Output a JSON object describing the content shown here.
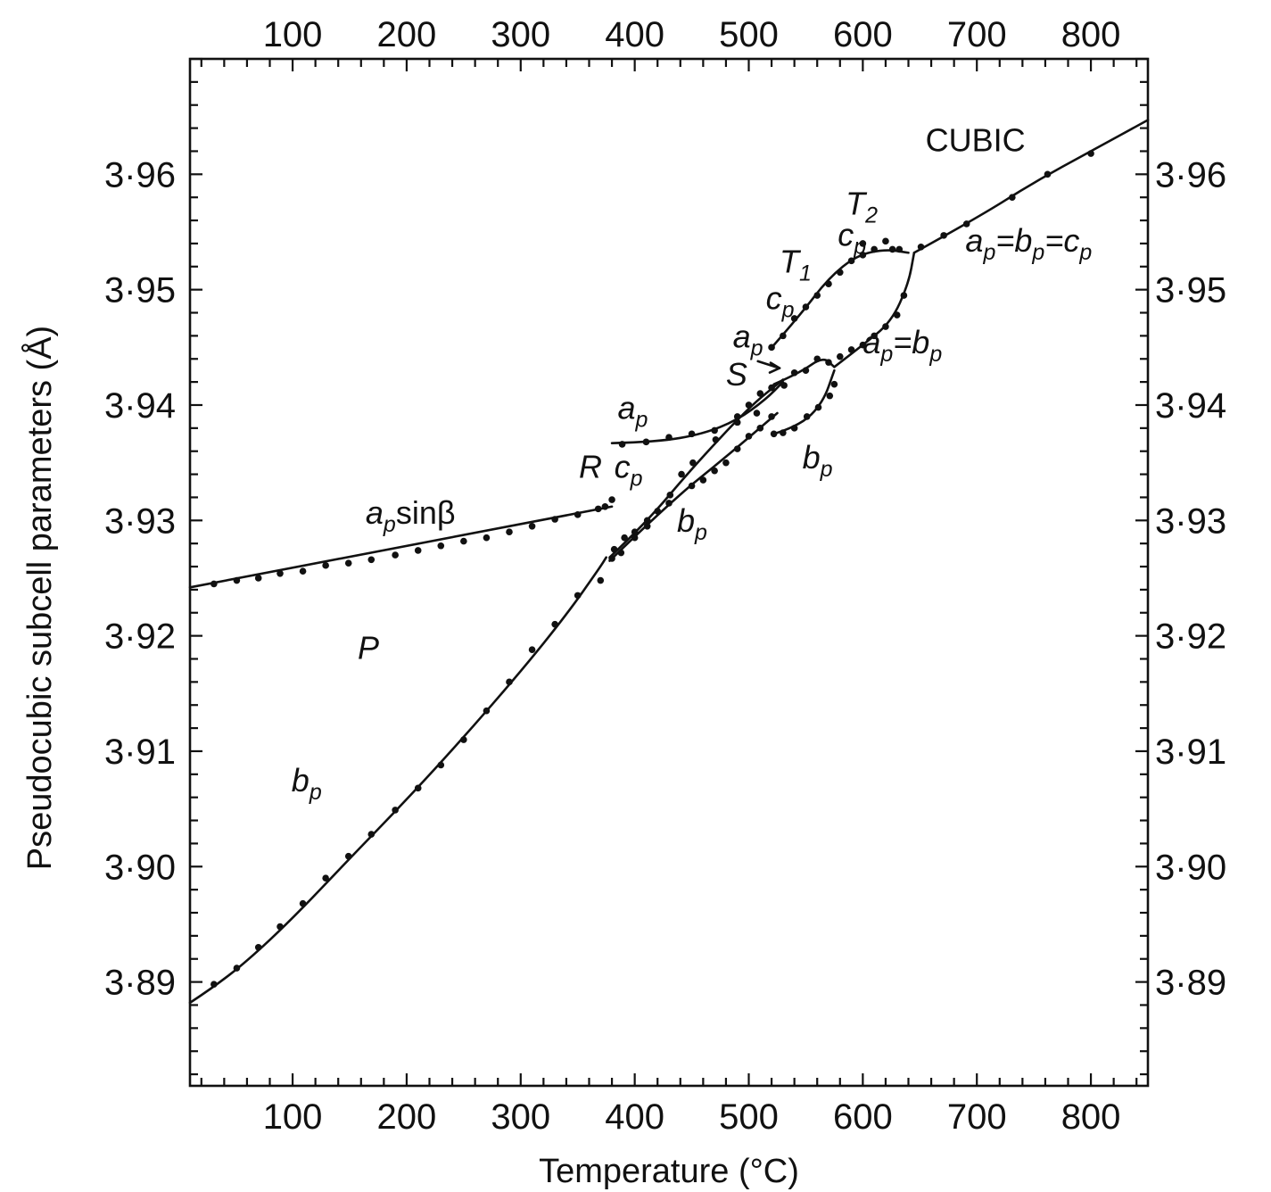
{
  "chart_data": {
    "type": "scatter",
    "title": "",
    "xlabel": "Temperature (°C)",
    "ylabel": "Pseudocubic subcell parameters (Å)",
    "xlim": [
      10,
      850
    ],
    "ylim": [
      3.881,
      3.97
    ],
    "x_ticks": [
      100,
      200,
      300,
      400,
      500,
      600,
      700,
      800
    ],
    "x_tick_labels": [
      "100",
      "200",
      "300",
      "400",
      "500",
      "600",
      "700",
      "800"
    ],
    "y_ticks": [
      3.89,
      3.9,
      3.91,
      3.92,
      3.93,
      3.94,
      3.95,
      3.96
    ],
    "y_tick_labels": [
      "3·89",
      "3·90",
      "3·91",
      "3·92",
      "3·93",
      "3·94",
      "3·95",
      "3·96"
    ],
    "grid": false,
    "axes": "mirrored: top and right axes repeat bottom and left",
    "annotations": [
      {
        "text": "CUBIC",
        "x": 655,
        "y": 3.962,
        "style": "upright"
      },
      {
        "text": "a",
        "sub": "p",
        "suffix": "=b",
        "text2": "p",
        "text3": "=c",
        "text4": "p",
        "x": 690,
        "y": 3.9533,
        "style": "italic",
        "full": "ap=bp=cp"
      },
      {
        "text": "T",
        "sub": "2",
        "x": 585,
        "y": 3.9565,
        "style": "italic",
        "full": "T2"
      },
      {
        "text": "c",
        "sub": "p",
        "x": 578,
        "y": 3.9538,
        "style": "italic",
        "full": "cp"
      },
      {
        "text": "T",
        "sub": "1",
        "x": 527,
        "y": 3.9515,
        "style": "italic",
        "full": "T1"
      },
      {
        "text": "c",
        "sub": "p",
        "x": 515,
        "y": 3.9483,
        "style": "italic",
        "full": "cp"
      },
      {
        "text": "a",
        "sub": "p",
        "x": 486,
        "y": 3.945,
        "style": "italic",
        "full": "ap"
      },
      {
        "text": "S",
        "x": 480,
        "y": 3.9417,
        "style": "italic",
        "full": "S"
      },
      {
        "text": "a",
        "sub": "p",
        "suffix": "=b",
        "text2": "p",
        "x": 600,
        "y": 3.9445,
        "style": "italic",
        "full": "ap=bp"
      },
      {
        "text": "a",
        "sub": "p",
        "x": 385,
        "y": 3.9388,
        "style": "italic",
        "full": "ap"
      },
      {
        "text": "b",
        "sub": "p",
        "x": 547,
        "y": 3.9345,
        "style": "italic",
        "full": "bp"
      },
      {
        "text": "R",
        "x": 351,
        "y": 3.9337,
        "style": "italic",
        "full": "R"
      },
      {
        "text": "c",
        "sub": "p",
        "x": 382,
        "y": 3.9337,
        "style": "italic",
        "full": "cp"
      },
      {
        "text": "b",
        "sub": "p",
        "x": 437,
        "y": 3.929,
        "style": "italic",
        "full": "bp"
      },
      {
        "text": "a",
        "sub": "p",
        "suffix": "sinβ",
        "x": 164,
        "y": 3.9297,
        "style": "italic",
        "full": "apsinβ"
      },
      {
        "text": "P",
        "x": 157,
        "y": 3.918,
        "style": "italic",
        "full": "P"
      },
      {
        "text": "b",
        "sub": "p",
        "x": 99,
        "y": 3.9065,
        "style": "italic",
        "full": "bp"
      }
    ],
    "series": [
      {
        "name": "P bp",
        "x": [
          31,
          51,
          70,
          89,
          109,
          129,
          149,
          169,
          190,
          210,
          230,
          250,
          270,
          290,
          310,
          330,
          350,
          370
        ],
        "y": [
          3.8898,
          3.8912,
          3.893,
          3.8948,
          3.8968,
          3.899,
          3.9009,
          3.9028,
          3.9049,
          3.9068,
          3.9088,
          3.911,
          3.9135,
          3.916,
          3.9188,
          3.921,
          3.9235,
          3.9248
        ],
        "fit": [
          [
            10,
            3.8882
          ],
          [
            30,
            3.8895
          ],
          [
            60,
            3.8918
          ],
          [
            100,
            3.8955
          ],
          [
            150,
            3.9007
          ],
          [
            200,
            3.9058
          ],
          [
            250,
            3.9112
          ],
          [
            300,
            3.9169
          ],
          [
            340,
            3.9218
          ],
          [
            370,
            3.926
          ],
          [
            375,
            3.9268
          ]
        ]
      },
      {
        "name": "P apsinβ",
        "x": [
          31,
          51,
          70,
          89,
          109,
          129,
          149,
          169,
          190,
          210,
          230,
          250,
          270,
          290,
          310,
          330,
          350,
          368,
          374,
          380
        ],
        "y": [
          3.9245,
          3.9248,
          3.925,
          3.9254,
          3.9256,
          3.9261,
          3.9263,
          3.9266,
          3.927,
          3.9274,
          3.9278,
          3.9282,
          3.9285,
          3.929,
          3.9295,
          3.9301,
          3.9305,
          3.931,
          3.9312,
          3.9318
        ],
        "fit": [
          [
            10,
            3.9242
          ],
          [
            380,
            3.9312
          ]
        ]
      },
      {
        "name": "R ap",
        "x": [
          389,
          410,
          430,
          450,
          470,
          490,
          507
        ],
        "y": [
          3.9366,
          3.9368,
          3.9372,
          3.9375,
          3.9378,
          3.9385,
          3.9393
        ],
        "fit": [
          [
            380,
            3.9367
          ],
          [
            420,
            3.9368
          ],
          [
            460,
            3.9375
          ],
          [
            490,
            3.9387
          ],
          [
            515,
            3.9405
          ],
          [
            530,
            3.942
          ]
        ]
      },
      {
        "name": "R cp",
        "x": [
          380,
          388,
          400,
          411,
          431,
          441,
          451,
          471,
          490,
          500,
          510
        ],
        "y": [
          3.9267,
          3.9272,
          3.9285,
          3.9295,
          3.9322,
          3.934,
          3.935,
          3.937,
          3.939,
          3.94,
          3.941
        ],
        "fit": [
          [
            378,
            3.9268
          ],
          [
            410,
            3.9298
          ],
          [
            450,
            3.9345
          ],
          [
            500,
            3.9398
          ],
          [
            530,
            3.9422
          ]
        ]
      },
      {
        "name": "R bp",
        "x": [
          382,
          391,
          400,
          411,
          420,
          430,
          450,
          460,
          470,
          480,
          490,
          500,
          510,
          520
        ],
        "y": [
          3.9275,
          3.9285,
          3.929,
          3.93,
          3.9308,
          3.9315,
          3.933,
          3.9335,
          3.9343,
          3.935,
          3.9362,
          3.9373,
          3.938,
          3.939
        ],
        "fit": [
          [
            378,
            3.9265
          ],
          [
            430,
            3.9315
          ],
          [
            480,
            3.9355
          ],
          [
            525,
            3.9393
          ]
        ]
      },
      {
        "name": "S ap",
        "x": [
          520,
          531,
          540,
          550,
          560,
          570
        ],
        "y": [
          3.9415,
          3.9417,
          3.9428,
          3.943,
          3.944,
          3.9437
        ],
        "fit": [
          [
            522,
            3.9418
          ],
          [
            545,
            3.9428
          ],
          [
            565,
            3.9442
          ],
          [
            575,
            3.9433
          ]
        ]
      },
      {
        "name": "S bp",
        "x": [
          522,
          530,
          540,
          551,
          561,
          571,
          575
        ],
        "y": [
          3.9375,
          3.9376,
          3.938,
          3.939,
          3.9398,
          3.9408,
          3.9418
        ],
        "fit": [
          [
            522,
            3.9375
          ],
          [
            545,
            3.9382
          ],
          [
            565,
            3.9402
          ],
          [
            575,
            3.943
          ]
        ]
      },
      {
        "name": "T1 cp",
        "x": [
          520,
          530,
          540,
          550,
          560,
          570,
          580,
          590,
          600,
          610
        ],
        "y": [
          3.945,
          3.946,
          3.9475,
          3.9485,
          3.9495,
          3.9505,
          3.9515,
          3.9525,
          3.953,
          3.9535
        ],
        "fit": [
          [
            522,
            3.9452
          ],
          [
            545,
            3.9478
          ],
          [
            570,
            3.951
          ],
          [
            595,
            3.953
          ],
          [
            620,
            3.9535
          ],
          [
            640,
            3.9532
          ]
        ]
      },
      {
        "name": "T2 ap=bp",
        "x": [
          580,
          590,
          600,
          610,
          620,
          630,
          636
        ],
        "y": [
          3.9442,
          3.9448,
          3.9452,
          3.946,
          3.9468,
          3.9478,
          3.9495
        ],
        "fit": [
          [
            575,
            3.9433
          ],
          [
            600,
            3.9452
          ],
          [
            625,
            3.9472
          ],
          [
            640,
            3.9505
          ],
          [
            645,
            3.9532
          ]
        ]
      },
      {
        "name": "T2 cp",
        "x": [
          600,
          620,
          626,
          632
        ],
        "y": [
          3.954,
          3.9542,
          3.9535,
          3.9535
        ],
        "fit": []
      },
      {
        "name": "Cubic ap=bp=cp",
        "x": [
          651,
          671,
          691,
          731,
          762,
          800
        ],
        "y": [
          3.9537,
          3.9547,
          3.9557,
          3.958,
          3.96,
          3.9618
        ],
        "fit": [
          [
            645,
            3.9532
          ],
          [
            700,
            3.9562
          ],
          [
            750,
            3.9593
          ],
          [
            800,
            3.962
          ],
          [
            850,
            3.9647
          ]
        ]
      }
    ]
  }
}
